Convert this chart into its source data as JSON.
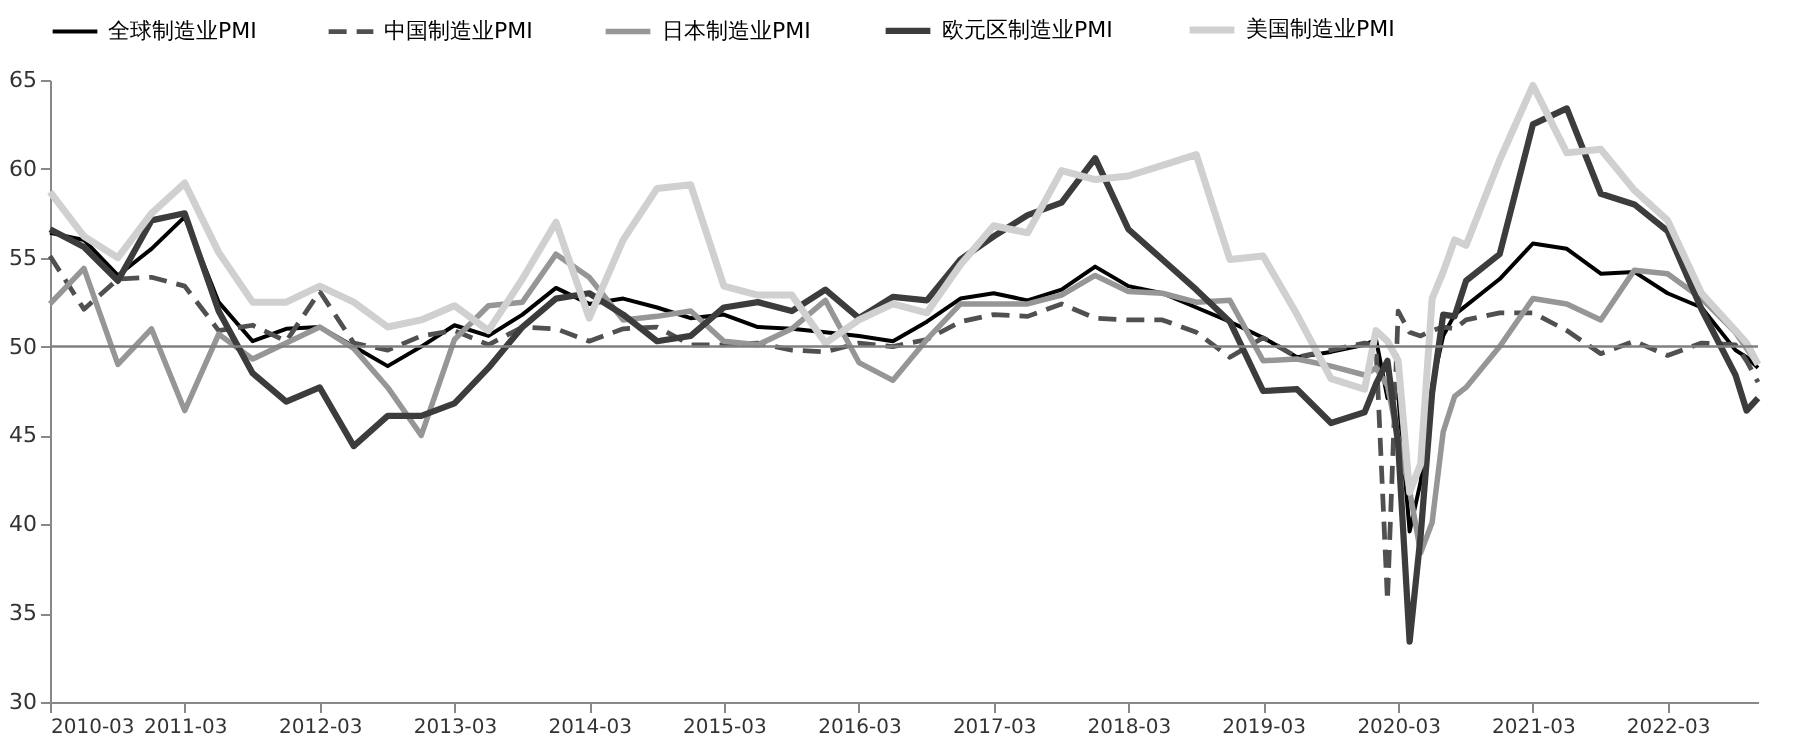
{
  "chart_data": {
    "type": "line",
    "legend": "top",
    "marker": "none",
    "grid": false,
    "x": [
      "2010-03",
      "2010-06",
      "2010-09",
      "2010-12",
      "2011-03",
      "2011-06",
      "2011-09",
      "2011-12",
      "2012-03",
      "2012-06",
      "2012-09",
      "2012-12",
      "2013-03",
      "2013-06",
      "2013-09",
      "2013-12",
      "2014-03",
      "2014-06",
      "2014-09",
      "2014-12",
      "2015-03",
      "2015-06",
      "2015-09",
      "2015-12",
      "2016-03",
      "2016-06",
      "2016-09",
      "2016-12",
      "2017-03",
      "2017-06",
      "2017-09",
      "2017-12",
      "2018-03",
      "2018-06",
      "2018-09",
      "2018-12",
      "2019-03",
      "2019-06",
      "2019-09",
      "2019-12",
      "2020-01",
      "2020-02",
      "2020-03",
      "2020-04",
      "2020-05",
      "2020-06",
      "2020-07",
      "2020-08",
      "2020-09",
      "2020-12",
      "2021-03",
      "2021-06",
      "2021-09",
      "2021-12",
      "2022-03",
      "2022-06",
      "2022-09",
      "2022-10",
      "2022-11"
    ],
    "xlim": [
      "2010-03",
      "2022-11"
    ],
    "xticks": [
      "2010-03",
      "2011-03",
      "2012-03",
      "2013-03",
      "2014-03",
      "2015-03",
      "2016-03",
      "2017-03",
      "2018-03",
      "2019-03",
      "2020-03",
      "2021-03",
      "2022-03"
    ],
    "ylim": [
      30,
      65
    ],
    "yticks": [
      30,
      35,
      40,
      45,
      50,
      55,
      60,
      65
    ],
    "ref_lines": [
      {
        "axis": "y",
        "value": 50,
        "color": "#808080"
      }
    ],
    "series": [
      {
        "name": "全球制造业PMI",
        "color": "#000000",
        "line_style": "solid",
        "values": [
          56.4,
          56,
          54,
          55.5,
          57.3,
          52.5,
          50.3,
          51,
          51.1,
          50,
          48.9,
          50,
          51.2,
          50.6,
          51.8,
          53.3,
          52.4,
          52.7,
          52.2,
          51.6,
          51.8,
          51.1,
          51,
          50.8,
          50.6,
          50.3,
          51.4,
          52.7,
          53,
          52.6,
          53.2,
          54.5,
          53.4,
          53,
          52.2,
          51.4,
          50.5,
          49.4,
          49.7,
          50.1,
          50.4,
          47.1,
          47.3,
          39.6,
          42.4,
          47.8,
          50.6,
          51.8,
          52.3,
          53.8,
          55.8,
          55.5,
          54.1,
          54.2,
          53,
          52.2,
          49.8,
          49.4,
          48.8
        ]
      },
      {
        "name": "中国制造业PMI",
        "color": "#505050",
        "line_style": "dashed",
        "values": [
          55.1,
          52.1,
          53.8,
          53.9,
          53.4,
          50.9,
          51.2,
          50.3,
          53.1,
          50.2,
          49.8,
          50.6,
          50.9,
          50.1,
          51.1,
          51,
          50.3,
          51,
          51.1,
          50.1,
          50.1,
          50.2,
          49.8,
          49.7,
          50.2,
          50,
          50.4,
          51.4,
          51.8,
          51.7,
          52.4,
          51.6,
          51.5,
          51.5,
          50.8,
          49.4,
          50.5,
          49.4,
          49.8,
          50.2,
          50,
          35.7,
          52,
          50.8,
          50.6,
          50.9,
          51.1,
          51,
          51.5,
          51.9,
          51.9,
          50.9,
          49.6,
          50.3,
          49.5,
          50.2,
          50.1,
          49.2,
          48
        ]
      },
      {
        "name": "日本制造业PMI",
        "color": "#969696",
        "line_style": "solid",
        "values": [
          52.4,
          54.4,
          49,
          51,
          46.4,
          50.7,
          49.3,
          50.2,
          51.1,
          49.9,
          47.7,
          45,
          50.4,
          52.3,
          52.5,
          55.2,
          53.9,
          51.5,
          51.7,
          52,
          50.3,
          50.1,
          51,
          52.6,
          49.1,
          48.1,
          50.4,
          52.4,
          52.4,
          52.4,
          52.9,
          54,
          53.1,
          53,
          52.5,
          52.6,
          49.2,
          49.3,
          48.9,
          48.4,
          48.8,
          47.8,
          44.8,
          41.9,
          38.4,
          40.1,
          45.2,
          47.2,
          47.7,
          50,
          52.7,
          52.4,
          51.5,
          54.3,
          54.1,
          52.7,
          50.8,
          49.9,
          49
        ]
      },
      {
        "name": "欧元区制造业PMI",
        "color": "#3c3c3c",
        "line_style": "solid",
        "values": [
          56.6,
          55.6,
          53.7,
          57.1,
          57.5,
          52,
          48.5,
          46.9,
          47.7,
          44.4,
          46.1,
          46.1,
          46.8,
          48.8,
          51.1,
          52.7,
          53,
          51.8,
          50.3,
          50.6,
          52.2,
          52.5,
          52,
          53.2,
          51.6,
          52.8,
          52.6,
          54.9,
          56.2,
          57.4,
          58.1,
          60.6,
          56.6,
          54.9,
          53.2,
          51.4,
          47.5,
          47.6,
          45.7,
          46.3,
          47.9,
          49.2,
          44.5,
          33.4,
          39.4,
          47.4,
          51.8,
          51.7,
          53.7,
          55.2,
          62.5,
          63.4,
          58.6,
          58,
          56.5,
          52.1,
          48.4,
          46.4,
          47.1
        ]
      },
      {
        "name": "美国制造业PMI",
        "color": "#d0d0d0",
        "line_style": "solid",
        "values": [
          58.7,
          56.2,
          55,
          57.5,
          59.2,
          55.3,
          52.5,
          52.5,
          53.4,
          52.5,
          51.1,
          51.5,
          52.3,
          50.9,
          53.8,
          57,
          51.6,
          56,
          58.9,
          59.1,
          53.4,
          52.9,
          52.9,
          50.2,
          51.5,
          52.4,
          51.9,
          54.6,
          56.8,
          56.4,
          59.9,
          59.4,
          59.6,
          60.2,
          60.8,
          54.9,
          55.1,
          51.8,
          48.2,
          47.6,
          50.9,
          50.3,
          49.2,
          41.8,
          43.4,
          52.7,
          54.2,
          56,
          55.7,
          60.5,
          64.7,
          60.9,
          61.1,
          58.8,
          57.1,
          53,
          50.9,
          50.2,
          49
        ]
      }
    ]
  }
}
